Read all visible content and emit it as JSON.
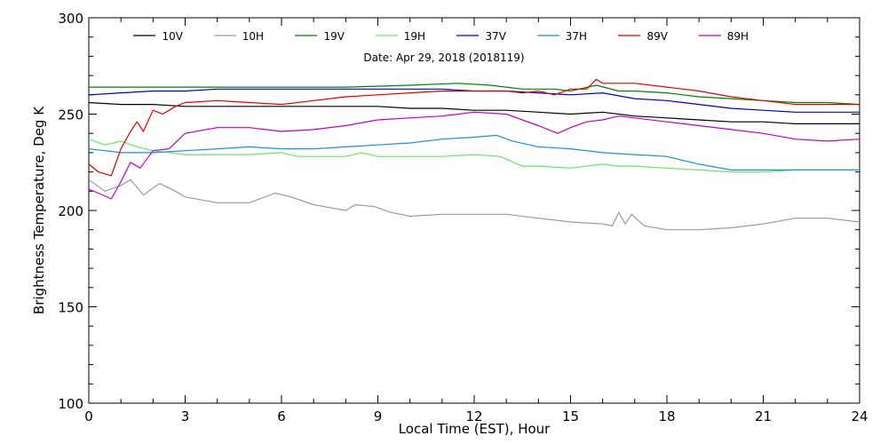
{
  "chart_data": {
    "type": "line",
    "title": "",
    "subtitle": "Date: Apr 29, 2018 (2018119)",
    "xlabel": "Local Time (EST), Hour",
    "ylabel": "Brightness Temperature, Deg K",
    "xlim": [
      0,
      24
    ],
    "ylim": [
      100,
      300
    ],
    "xticks": [
      0,
      3,
      6,
      9,
      12,
      15,
      18,
      21,
      24
    ],
    "yticks": [
      100,
      150,
      200,
      250,
      300
    ],
    "grid": false,
    "legend_position": "top",
    "series": [
      {
        "name": "10V",
        "color": "#000000",
        "points": [
          [
            0,
            256
          ],
          [
            1,
            255
          ],
          [
            2,
            255
          ],
          [
            3,
            254
          ],
          [
            4,
            254
          ],
          [
            5,
            254
          ],
          [
            6,
            254
          ],
          [
            7,
            254
          ],
          [
            8,
            254
          ],
          [
            9,
            254
          ],
          [
            10,
            253
          ],
          [
            11,
            253
          ],
          [
            12,
            252
          ],
          [
            13,
            252
          ],
          [
            14,
            251
          ],
          [
            15,
            250
          ],
          [
            16,
            251
          ],
          [
            17,
            249
          ],
          [
            18,
            248
          ],
          [
            19,
            247
          ],
          [
            20,
            246
          ],
          [
            21,
            246
          ],
          [
            22,
            245
          ],
          [
            23,
            245
          ],
          [
            24,
            245
          ]
        ]
      },
      {
        "name": "10H",
        "color": "#9a9a9a",
        "points": [
          [
            0,
            216
          ],
          [
            0.5,
            210
          ],
          [
            1,
            213
          ],
          [
            1.3,
            216
          ],
          [
            1.7,
            208
          ],
          [
            2.2,
            214
          ],
          [
            2.7,
            210
          ],
          [
            3,
            207
          ],
          [
            4,
            204
          ],
          [
            5,
            204
          ],
          [
            5.8,
            209
          ],
          [
            6.3,
            207
          ],
          [
            7,
            203
          ],
          [
            8,
            200
          ],
          [
            8.3,
            203
          ],
          [
            8.9,
            202
          ],
          [
            9.4,
            199
          ],
          [
            10,
            197
          ],
          [
            11,
            198
          ],
          [
            12,
            198
          ],
          [
            13,
            198
          ],
          [
            14,
            196
          ],
          [
            15,
            194
          ],
          [
            16,
            193
          ],
          [
            16.3,
            192
          ],
          [
            16.5,
            199
          ],
          [
            16.7,
            193
          ],
          [
            16.9,
            198
          ],
          [
            17.3,
            192
          ],
          [
            18,
            190
          ],
          [
            19,
            190
          ],
          [
            20,
            191
          ],
          [
            21,
            193
          ],
          [
            22,
            196
          ],
          [
            23,
            196
          ],
          [
            24,
            194
          ]
        ]
      },
      {
        "name": "19V",
        "color": "#008000",
        "points": [
          [
            0,
            264
          ],
          [
            2,
            264
          ],
          [
            4,
            264
          ],
          [
            6,
            264
          ],
          [
            8,
            264
          ],
          [
            10,
            265
          ],
          [
            11.5,
            266
          ],
          [
            12.5,
            265
          ],
          [
            13.5,
            263
          ],
          [
            14.5,
            263
          ],
          [
            15,
            262
          ],
          [
            15.8,
            265
          ],
          [
            16.5,
            262
          ],
          [
            17,
            262
          ],
          [
            18,
            261
          ],
          [
            19,
            259
          ],
          [
            20,
            258
          ],
          [
            21,
            257
          ],
          [
            22,
            256
          ],
          [
            23,
            256
          ],
          [
            24,
            255
          ]
        ]
      },
      {
        "name": "19H",
        "color": "#66e666",
        "points": [
          [
            0,
            237
          ],
          [
            0.5,
            234
          ],
          [
            1,
            236
          ],
          [
            1.5,
            233
          ],
          [
            2,
            231
          ],
          [
            2.5,
            230
          ],
          [
            3,
            229
          ],
          [
            4,
            229
          ],
          [
            5,
            229
          ],
          [
            6,
            230
          ],
          [
            6.5,
            228
          ],
          [
            7,
            228
          ],
          [
            8,
            228
          ],
          [
            8.5,
            230
          ],
          [
            9,
            228
          ],
          [
            10,
            228
          ],
          [
            11,
            228
          ],
          [
            12,
            229
          ],
          [
            12.8,
            228
          ],
          [
            13.5,
            223
          ],
          [
            14,
            223
          ],
          [
            15,
            222
          ],
          [
            15.5,
            223
          ],
          [
            16,
            224
          ],
          [
            16.5,
            223
          ],
          [
            17,
            223
          ],
          [
            18,
            222
          ],
          [
            19,
            221
          ],
          [
            20,
            220
          ],
          [
            21,
            220
          ],
          [
            22,
            221
          ],
          [
            23,
            221
          ],
          [
            24,
            221
          ]
        ]
      },
      {
        "name": "37V",
        "color": "#0000cc",
        "points": [
          [
            0,
            260
          ],
          [
            1,
            261
          ],
          [
            2,
            262
          ],
          [
            3,
            262
          ],
          [
            4,
            263
          ],
          [
            6,
            263
          ],
          [
            8,
            263
          ],
          [
            10,
            263
          ],
          [
            11,
            263
          ],
          [
            12,
            262
          ],
          [
            13,
            262
          ],
          [
            14,
            261
          ],
          [
            15,
            260
          ],
          [
            16,
            261
          ],
          [
            17,
            258
          ],
          [
            18,
            257
          ],
          [
            19,
            255
          ],
          [
            20,
            253
          ],
          [
            21,
            252
          ],
          [
            22,
            251
          ],
          [
            23,
            251
          ],
          [
            24,
            251
          ]
        ]
      },
      {
        "name": "37H",
        "color": "#1e8fd6",
        "points": [
          [
            0,
            232
          ],
          [
            0.5,
            231
          ],
          [
            1,
            230
          ],
          [
            2,
            230
          ],
          [
            3,
            231
          ],
          [
            4,
            232
          ],
          [
            5,
            233
          ],
          [
            6,
            232
          ],
          [
            7,
            232
          ],
          [
            8,
            233
          ],
          [
            9,
            234
          ],
          [
            10,
            235
          ],
          [
            11,
            237
          ],
          [
            12,
            238
          ],
          [
            12.7,
            239
          ],
          [
            13.2,
            236
          ],
          [
            14,
            233
          ],
          [
            15,
            232
          ],
          [
            16,
            230
          ],
          [
            17,
            229
          ],
          [
            18,
            228
          ],
          [
            19,
            224
          ],
          [
            20,
            221
          ],
          [
            21,
            221
          ],
          [
            22,
            221
          ],
          [
            23,
            221
          ],
          [
            24,
            221
          ]
        ]
      },
      {
        "name": "89V",
        "color": "#e00000",
        "points": [
          [
            0,
            224
          ],
          [
            0.3,
            220
          ],
          [
            0.7,
            218
          ],
          [
            1,
            232
          ],
          [
            1.3,
            241
          ],
          [
            1.5,
            246
          ],
          [
            1.7,
            241
          ],
          [
            2,
            252
          ],
          [
            2.3,
            250
          ],
          [
            2.7,
            254
          ],
          [
            3,
            256
          ],
          [
            4,
            257
          ],
          [
            5,
            256
          ],
          [
            6,
            255
          ],
          [
            7,
            257
          ],
          [
            8,
            259
          ],
          [
            9,
            260
          ],
          [
            10,
            261
          ],
          [
            11,
            262
          ],
          [
            12,
            262
          ],
          [
            13,
            262
          ],
          [
            13.5,
            261
          ],
          [
            14,
            262
          ],
          [
            14.5,
            260
          ],
          [
            15,
            263
          ],
          [
            15.5,
            263
          ],
          [
            15.8,
            268
          ],
          [
            16,
            266
          ],
          [
            16.5,
            266
          ],
          [
            17,
            266
          ],
          [
            18,
            264
          ],
          [
            19,
            262
          ],
          [
            20,
            259
          ],
          [
            21,
            257
          ],
          [
            22,
            255
          ],
          [
            23,
            255
          ],
          [
            24,
            255
          ]
        ]
      },
      {
        "name": "89H",
        "color": "#c000c0",
        "points": [
          [
            0,
            211
          ],
          [
            0.3,
            209
          ],
          [
            0.7,
            206
          ],
          [
            1,
            215
          ],
          [
            1.3,
            225
          ],
          [
            1.6,
            222
          ],
          [
            2,
            231
          ],
          [
            2.5,
            232
          ],
          [
            3,
            240
          ],
          [
            4,
            243
          ],
          [
            5,
            243
          ],
          [
            6,
            241
          ],
          [
            7,
            242
          ],
          [
            8,
            244
          ],
          [
            9,
            247
          ],
          [
            10,
            248
          ],
          [
            11,
            249
          ],
          [
            12,
            251
          ],
          [
            13,
            250
          ],
          [
            14,
            244
          ],
          [
            14.6,
            240
          ],
          [
            15,
            243
          ],
          [
            15.5,
            246
          ],
          [
            16,
            247
          ],
          [
            16.5,
            249
          ],
          [
            17,
            248
          ],
          [
            18,
            246
          ],
          [
            19,
            244
          ],
          [
            20,
            242
          ],
          [
            21,
            240
          ],
          [
            22,
            237
          ],
          [
            23,
            236
          ],
          [
            24,
            237
          ]
        ]
      }
    ]
  }
}
